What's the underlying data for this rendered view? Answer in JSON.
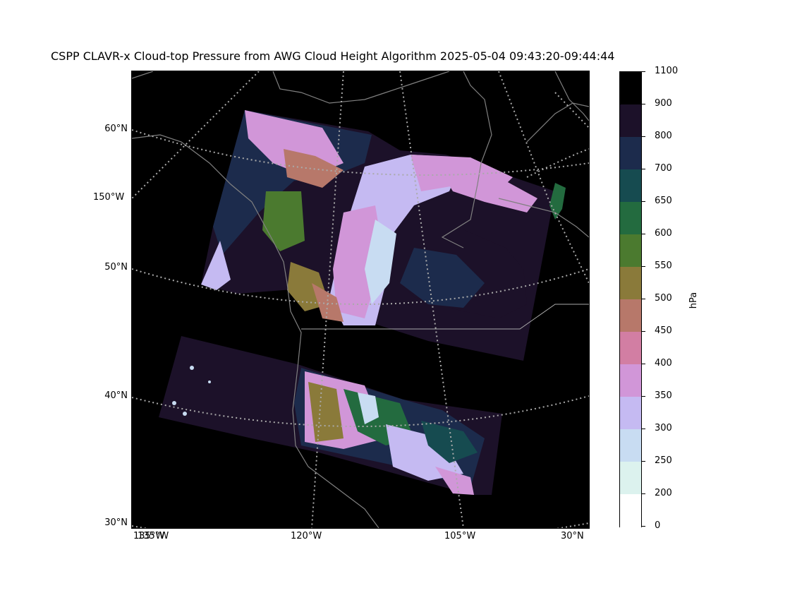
{
  "title": "CSPP CLAVR-x Cloud-top Pressure from AWG Cloud Height Algorithm 2025-05-04 09:43:20-09:44:44",
  "map": {
    "lat_labels": [
      "60°N",
      "50°N",
      "40°N",
      "30°N"
    ],
    "lon_labels": [
      "150°W",
      "135°W",
      "120°W",
      "105°W",
      "30°N"
    ],
    "extra_label": "135°W",
    "coastline_color": "#808080",
    "grid_color": "#aaaaaa"
  },
  "colorbar": {
    "unit": "hPa",
    "ticks": [
      "1100",
      "900",
      "800",
      "700",
      "650",
      "600",
      "550",
      "500",
      "450",
      "400",
      "350",
      "300",
      "250",
      "200",
      "0"
    ],
    "colors": [
      "#000000",
      "#1c1129",
      "#1c2b4c",
      "#164b50",
      "#236b3f",
      "#4b7a2f",
      "#8a7a3a",
      "#b7786a",
      "#d27ea3",
      "#d196d8",
      "#c5baf2",
      "#c8dcf2",
      "#dcf2ee",
      "#ffffff"
    ]
  }
}
